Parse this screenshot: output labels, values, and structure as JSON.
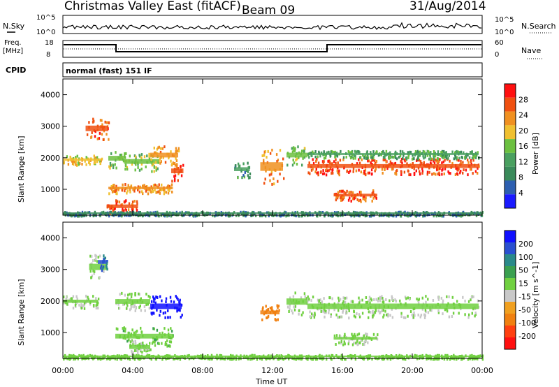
{
  "header": {
    "title": "Christmas Valley East (fitACF)",
    "beam": "Beam 09",
    "date": "31/Aug/2014"
  },
  "status_panels": {
    "noise": {
      "left_label": "N.Sky",
      "right_label": "N.Search",
      "left_ticks": [
        "10^5",
        "10^0"
      ],
      "right_ticks": [
        "10^5",
        "10^0"
      ]
    },
    "freq": {
      "left_label_1": "Freq.",
      "left_label_2": "[MHz]",
      "right_label": "Nave",
      "left_ticks": [
        "18",
        "8"
      ],
      "right_ticks": [
        "60",
        "0"
      ]
    },
    "cpid": {
      "label": "CPID",
      "value": "normal (fast) 151 IF"
    }
  },
  "colors": {
    "power_scale": [
      "#1a1aff",
      "#2d5fb0",
      "#3a8a5a",
      "#4aa060",
      "#6cc040",
      "#f0c030",
      "#f09020",
      "#f05010",
      "#ff1010"
    ],
    "velocity_scale": [
      "#1010ff",
      "#2a50d0",
      "#2a8a8a",
      "#3aa050",
      "#70d040",
      "#c8c8c8",
      "#f0a020",
      "#f08010",
      "#ff4010",
      "#ff1010"
    ]
  },
  "chart_data": [
    {
      "type": "heatmap",
      "name": "Power",
      "ylabel": "Slant Range [km]",
      "yticks": [
        "4000",
        "3000",
        "2000",
        "1000"
      ],
      "ylim": [
        180,
        4500
      ],
      "colorbar_label": "Power [dB]",
      "colorbar_ticks": [
        "28",
        "24",
        "20",
        "16",
        "12",
        "8",
        "4"
      ],
      "colorbar_range": [
        0,
        30
      ],
      "xticks": [
        "00:00",
        "04:00",
        "08:00",
        "12:00",
        "16:00",
        "20:00",
        "00:00"
      ],
      "xlim_hours": [
        0,
        24
      ],
      "regions": [
        {
          "t0": 0.0,
          "t1": 2.2,
          "r0": 1800,
          "r1": 2100,
          "v": 18
        },
        {
          "t0": 1.3,
          "t1": 2.6,
          "r0": 2600,
          "r1": 3300,
          "v": 24
        },
        {
          "t0": 2.6,
          "t1": 3.5,
          "r0": 1700,
          "r1": 2300,
          "v": 14
        },
        {
          "t0": 3.5,
          "t1": 5.5,
          "r0": 1600,
          "r1": 2200,
          "v": 16
        },
        {
          "t0": 5.0,
          "t1": 6.6,
          "r0": 1800,
          "r1": 2400,
          "v": 20
        },
        {
          "t0": 6.2,
          "t1": 6.9,
          "r0": 1300,
          "r1": 1900,
          "v": 26
        },
        {
          "t0": 2.6,
          "t1": 6.3,
          "r0": 900,
          "r1": 1200,
          "v": 22
        },
        {
          "t0": 2.5,
          "t1": 4.3,
          "r0": 250,
          "r1": 700,
          "v": 26
        },
        {
          "t0": 9.8,
          "t1": 10.7,
          "r0": 1400,
          "r1": 1900,
          "v": 10
        },
        {
          "t0": 11.3,
          "t1": 12.6,
          "r0": 1200,
          "r1": 2300,
          "v": 22
        },
        {
          "t0": 12.8,
          "t1": 14.0,
          "r0": 1800,
          "r1": 2400,
          "v": 14
        },
        {
          "t0": 14.0,
          "t1": 23.8,
          "r0": 1500,
          "r1": 2000,
          "v": 26
        },
        {
          "t0": 14.0,
          "t1": 23.8,
          "r0": 2000,
          "r1": 2250,
          "v": 12
        },
        {
          "t0": 15.5,
          "t1": 18.0,
          "r0": 650,
          "r1": 1000,
          "v": 24
        },
        {
          "t0": 0.0,
          "t1": 24.0,
          "r0": 190,
          "r1": 320,
          "v": 8
        }
      ]
    },
    {
      "type": "heatmap",
      "name": "Velocity",
      "ylabel": "Slant Range [km]",
      "yticks": [
        "4000",
        "3000",
        "2000",
        "1000"
      ],
      "ylim": [
        180,
        4500
      ],
      "colorbar_label": "Velocity [m s^-1]",
      "colorbar_ticks": [
        "200",
        "100",
        "50",
        "15",
        "-15",
        "-50",
        "-100",
        "-200"
      ],
      "colorbar_range": [
        -250,
        250
      ],
      "xticks": [
        "00:00",
        "04:00",
        "08:00",
        "12:00",
        "16:00",
        "20:00",
        "00:00"
      ],
      "xlim_hours": [
        0,
        24
      ],
      "xlabel": "Time UT",
      "regions": [
        {
          "t0": 0.0,
          "t1": 2.0,
          "r0": 1800,
          "r1": 2200,
          "v": 0
        },
        {
          "t0": 1.5,
          "t1": 2.5,
          "r0": 2700,
          "r1": 3500,
          "v": 0
        },
        {
          "t0": 2.0,
          "t1": 2.5,
          "r0": 3000,
          "r1": 3500,
          "v": 150
        },
        {
          "t0": 3.0,
          "t1": 5.0,
          "r0": 1700,
          "r1": 2300,
          "v": 0
        },
        {
          "t0": 5.0,
          "t1": 6.8,
          "r0": 1500,
          "r1": 2200,
          "v": 220
        },
        {
          "t0": 3.0,
          "t1": 6.3,
          "r0": 600,
          "r1": 1200,
          "v": 40
        },
        {
          "t0": 3.8,
          "t1": 5.0,
          "r0": 300,
          "r1": 800,
          "v": 0
        },
        {
          "t0": 11.3,
          "t1": 12.4,
          "r0": 1400,
          "r1": 1900,
          "v": -120
        },
        {
          "t0": 12.8,
          "t1": 14.0,
          "r0": 1600,
          "r1": 2400,
          "v": 0
        },
        {
          "t0": 14.0,
          "t1": 23.8,
          "r0": 1500,
          "r1": 2200,
          "v": 0
        },
        {
          "t0": 15.5,
          "t1": 18.0,
          "r0": 650,
          "r1": 1000,
          "v": 0
        },
        {
          "t0": 0.0,
          "t1": 24.0,
          "r0": 190,
          "r1": 320,
          "v": 25
        }
      ]
    }
  ]
}
